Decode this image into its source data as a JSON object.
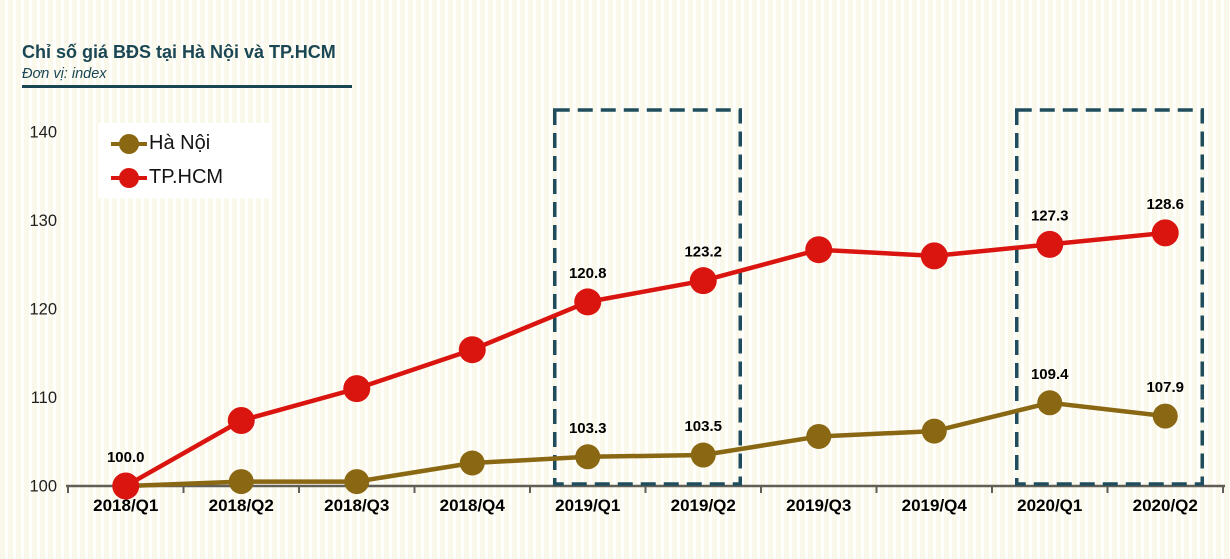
{
  "header": {
    "title": "Chỉ số giá BĐS tại Hà Nội và TP.HCM",
    "unit_label": "Đơn vị: index"
  },
  "colors": {
    "title_teal": "#1b4754",
    "hanoi": "#8a6813",
    "tphcm": "#da1510",
    "axis": "#605e55",
    "highlight_box": "#1f4d5e",
    "background_stripe_cream": "#faf8ea",
    "background_stripe_white": "#fffffd",
    "legend_bg": "#ffffff",
    "label_text": "#000000"
  },
  "chart_data": {
    "type": "line",
    "title": "Chỉ số giá BĐS tại Hà Nội và TP.HCM",
    "unit": "index",
    "categories": [
      "2018/Q1",
      "2018/Q2",
      "2018/Q3",
      "2018/Q4",
      "2019/Q1",
      "2019/Q2",
      "2019/Q3",
      "2019/Q4",
      "2020/Q1",
      "2020/Q2"
    ],
    "series": [
      {
        "name": "Hà Nội",
        "color": "#8a6813",
        "values": [
          100.0,
          100.5,
          100.5,
          102.6,
          103.3,
          103.5,
          105.6,
          106.2,
          109.4,
          107.9
        ],
        "point_labels": [
          null,
          null,
          null,
          null,
          "103.3",
          "103.5",
          null,
          null,
          "109.4",
          "107.9"
        ]
      },
      {
        "name": "TP.HCM",
        "color": "#da1510",
        "values": [
          100.0,
          107.4,
          111.0,
          115.4,
          120.8,
          123.2,
          126.7,
          126.0,
          127.3,
          128.6
        ],
        "point_labels": [
          "100.0",
          null,
          null,
          null,
          "120.8",
          "123.2",
          null,
          null,
          "127.3",
          "128.6"
        ]
      }
    ],
    "y_axis": {
      "min": 100,
      "max": 140,
      "tick_step": 10,
      "tick_labels": [
        "100",
        "110",
        "120",
        "130",
        "140"
      ]
    },
    "x_axis": {
      "gridlines": false
    },
    "legend_position": "top-left",
    "highlight_boxes": [
      {
        "from_category": "2019/Q1",
        "to_category": "2019/Q2"
      },
      {
        "from_category": "2020/Q1",
        "to_category": "2020/Q2"
      }
    ]
  }
}
